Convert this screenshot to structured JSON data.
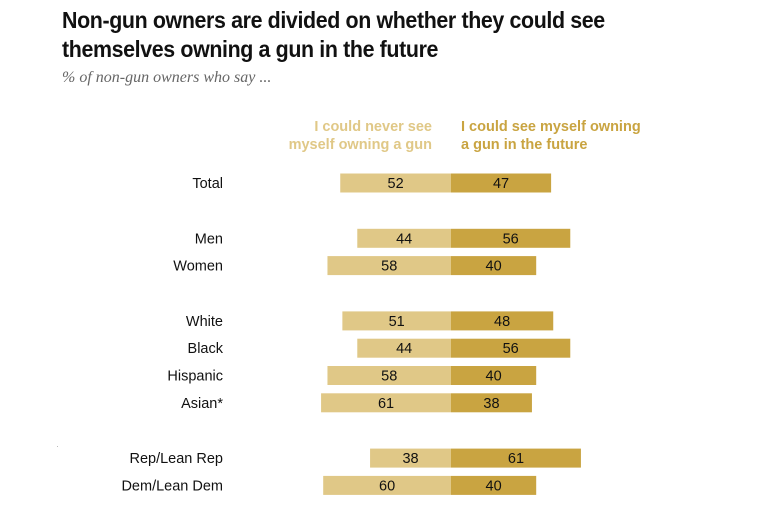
{
  "chart_data": {
    "type": "bar",
    "orientation": "horizontal-diverging",
    "title": "Non-gun owners are divided on whether they could see themselves owning a gun in the future",
    "subtitle": "% of non-gun owners who say ...",
    "xlabel": "",
    "ylabel": "",
    "xlim": [
      0,
      100
    ],
    "grid": false,
    "legend_placement": "top",
    "series": [
      {
        "name": "I could never see myself owning a gun",
        "color": "#e0c887",
        "values": [
          52,
          44,
          58,
          51,
          44,
          58,
          61,
          38,
          60
        ]
      },
      {
        "name": "I could see myself owning a gun in the future",
        "color": "#c9a441",
        "values": [
          47,
          56,
          40,
          48,
          56,
          40,
          38,
          61,
          40
        ]
      }
    ],
    "categories": [
      "Total",
      "Men",
      "Women",
      "White",
      "Black",
      "Hispanic",
      "Asian*",
      "Rep/Lean Rep",
      "Dem/Lean Dem"
    ],
    "groups": [
      [
        "Total"
      ],
      [
        "Men",
        "Women"
      ],
      [
        "White",
        "Black",
        "Hispanic",
        "Asian*"
      ],
      [
        "Rep/Lean Rep",
        "Dem/Lean Dem"
      ]
    ]
  },
  "legend": {
    "left_line1": "I could never see",
    "left_line2": "myself owning a gun",
    "right_line1": "I could see myself owning",
    "right_line2": "a gun in the future"
  }
}
